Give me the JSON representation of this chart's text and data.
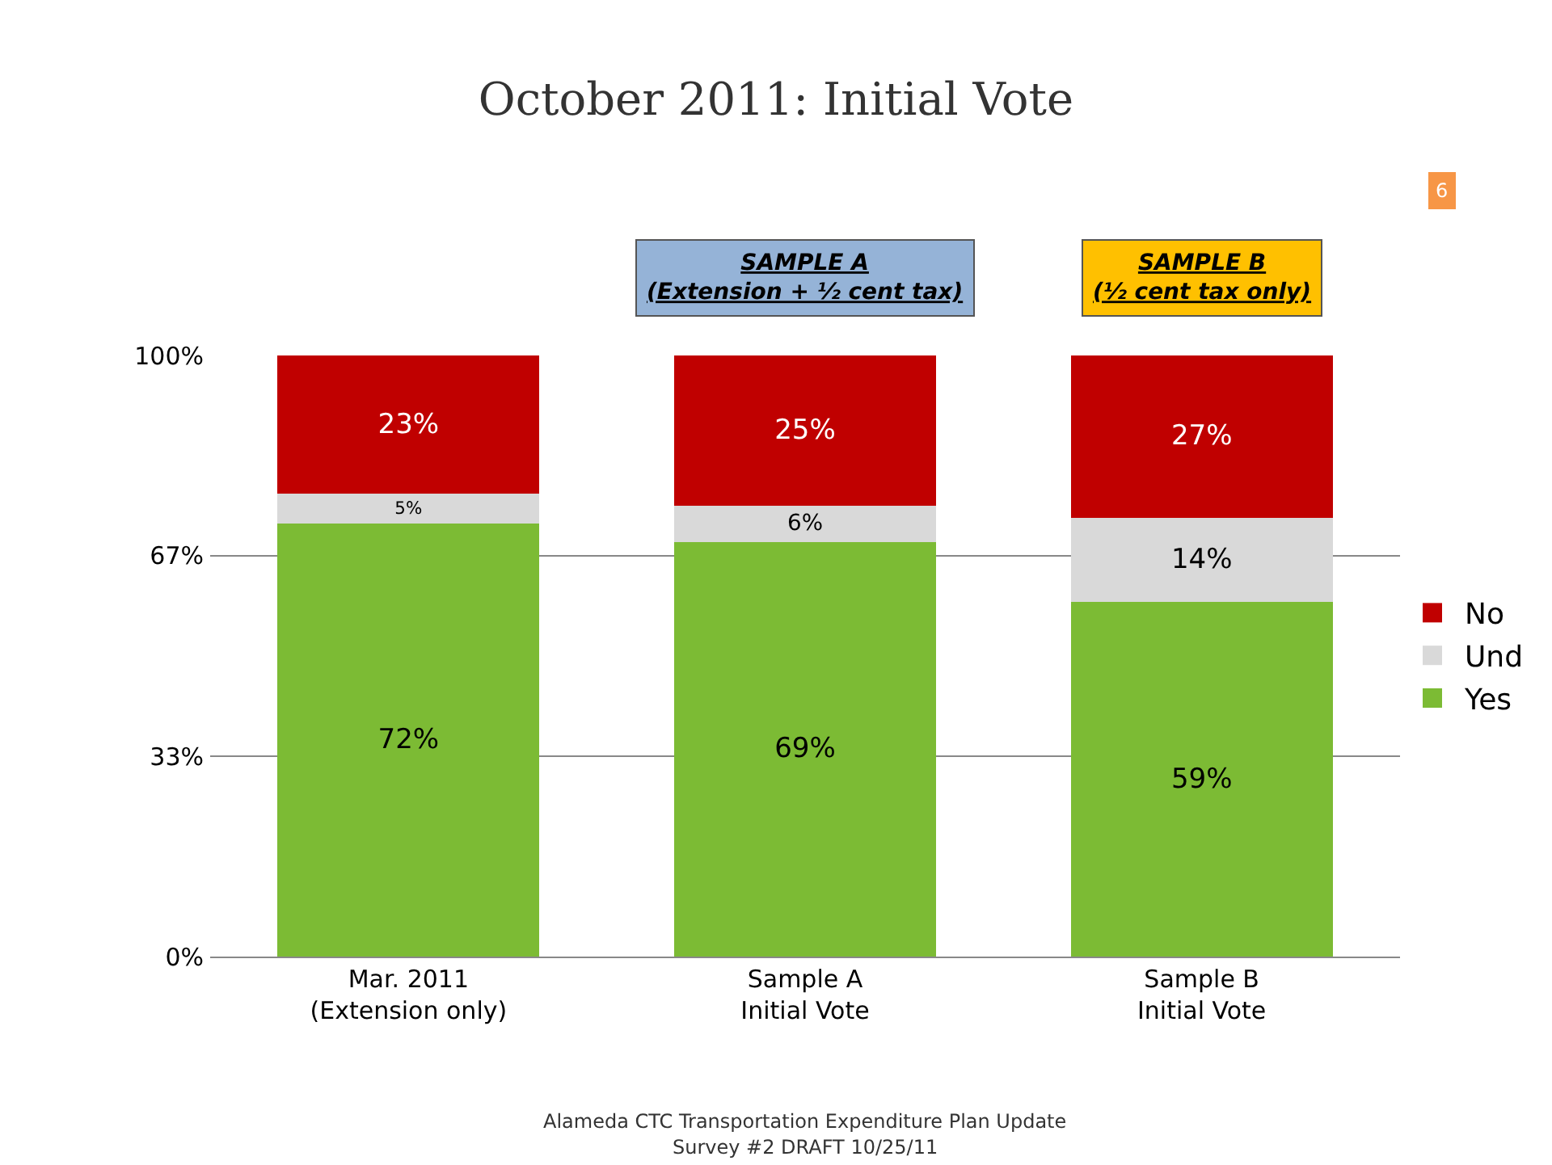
{
  "chart_data": {
    "type": "bar",
    "stacked": true,
    "title": "October 2011: Initial Vote",
    "categories": [
      "Mar. 2011\n(Extension only)",
      "Sample A\nInitial Vote",
      "Sample B\nInitial Vote"
    ],
    "series": [
      {
        "name": "Yes",
        "color": "#7cbb34",
        "values": [
          72,
          69,
          59
        ],
        "value_labels": [
          "72%",
          "69%",
          "59%"
        ]
      },
      {
        "name": "Und",
        "color": "#d9d9d9",
        "values": [
          5,
          6,
          14
        ],
        "value_labels": [
          "5%",
          "6%",
          "14%"
        ]
      },
      {
        "name": "No",
        "color": "#c00000",
        "values": [
          23,
          25,
          27
        ],
        "value_labels": [
          "23%",
          "25%",
          "27%"
        ]
      }
    ],
    "ylim": [
      0,
      100
    ],
    "yticks": [
      {
        "value": 0,
        "label": "0%"
      },
      {
        "value": 33.3,
        "label": "33%"
      },
      {
        "value": 66.7,
        "label": "67%"
      },
      {
        "value": 100,
        "label": "100%"
      }
    ],
    "grid": "y",
    "legend": "right",
    "annotations": [
      "SAMPLE A\n(Extension + ½ cent tax)",
      "SAMPLE B\n(½ cent tax only)",
      "6",
      "Alameda CTC Transportation Expenditure Plan Update",
      "Survey #2 DRAFT 10/25/11"
    ]
  }
}
